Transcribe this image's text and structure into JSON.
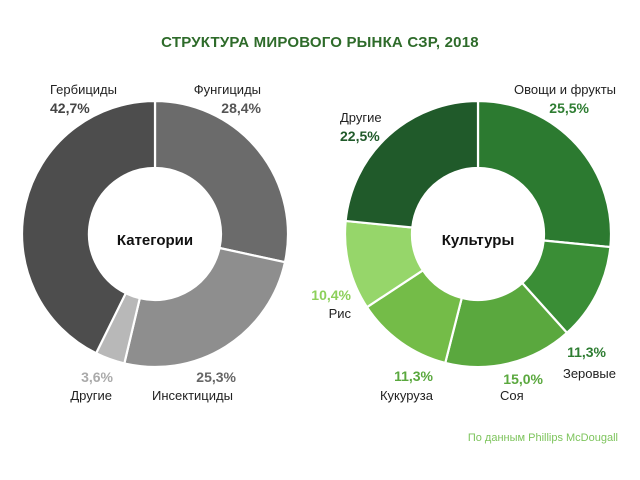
{
  "title": "СТРУКТУРА МИРОВОГО РЫНКА СЗР, 2018",
  "source": "По данным Phillips McDougall",
  "chart_data": [
    {
      "type": "pie",
      "center_label": "Категории",
      "slices": [
        {
          "name": "Фунгициды",
          "value": 28.4,
          "label": "28,4%",
          "color": "#6b6b6b",
          "value_color": "#555555"
        },
        {
          "name": "Инсектициды",
          "value": 25.3,
          "label": "25,3%",
          "color": "#8e8e8e",
          "value_color": "#666666"
        },
        {
          "name": "Другие",
          "value": 3.6,
          "label": "3,6%",
          "color": "#b8b8b8",
          "value_color": "#aaaaaa"
        },
        {
          "name": "Гербициды",
          "value": 42.7,
          "label": "42,7%",
          "color": "#4d4d4d",
          "value_color": "#444444"
        }
      ]
    },
    {
      "type": "pie",
      "center_label": "Культуры",
      "slices": [
        {
          "name": "Овощи и фрукты",
          "value": 25.5,
          "label": "25,5%",
          "color": "#2c7a30",
          "value_color": "#2e7d32"
        },
        {
          "name": "Зеровые",
          "value": 11.3,
          "label": "11,3%",
          "color": "#3a8e36",
          "value_color": "#2e7d32"
        },
        {
          "name": "Соя",
          "value": 15.0,
          "label": "15,0%",
          "color": "#5aa83e",
          "value_color": "#5aa83e"
        },
        {
          "name": "Кукуруза",
          "value": 11.3,
          "label": "11,3%",
          "color": "#74bc48",
          "value_color": "#5aa83e"
        },
        {
          "name": "Рис",
          "value": 10.4,
          "label": "10,4%",
          "color": "#96d66a",
          "value_color": "#8cd05a"
        },
        {
          "name": "Другие",
          "value": 22.5,
          "label": "22,5%",
          "color": "#205a2a",
          "value_color": "#205a2a"
        }
      ]
    }
  ]
}
